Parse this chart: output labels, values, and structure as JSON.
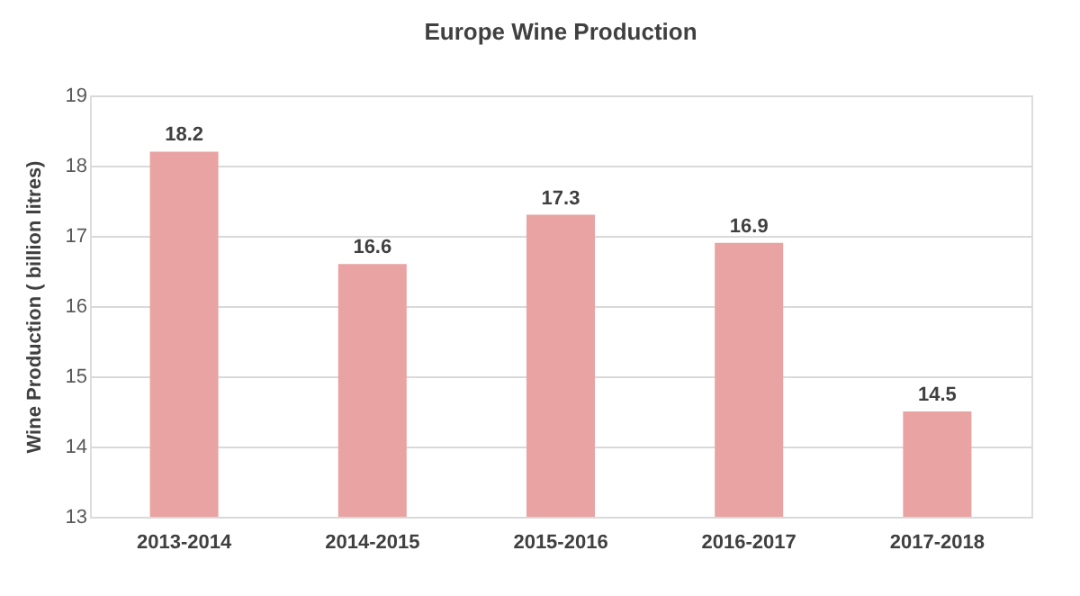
{
  "chart_data": {
    "type": "bar",
    "title": "Europe Wine Production",
    "ylabel": "Wine Production ( billion litres)",
    "categories": [
      "2013-2014",
      "2014-2015",
      "2015-2016",
      "2016-2017",
      "2017-2018"
    ],
    "values": [
      18.2,
      16.6,
      17.3,
      16.9,
      14.5
    ],
    "color": "#e8a3a2",
    "ylim": [
      13,
      19
    ],
    "yticks": [
      13,
      14,
      15,
      16,
      17,
      18,
      19
    ],
    "grid": "y",
    "data_labels": true
  }
}
